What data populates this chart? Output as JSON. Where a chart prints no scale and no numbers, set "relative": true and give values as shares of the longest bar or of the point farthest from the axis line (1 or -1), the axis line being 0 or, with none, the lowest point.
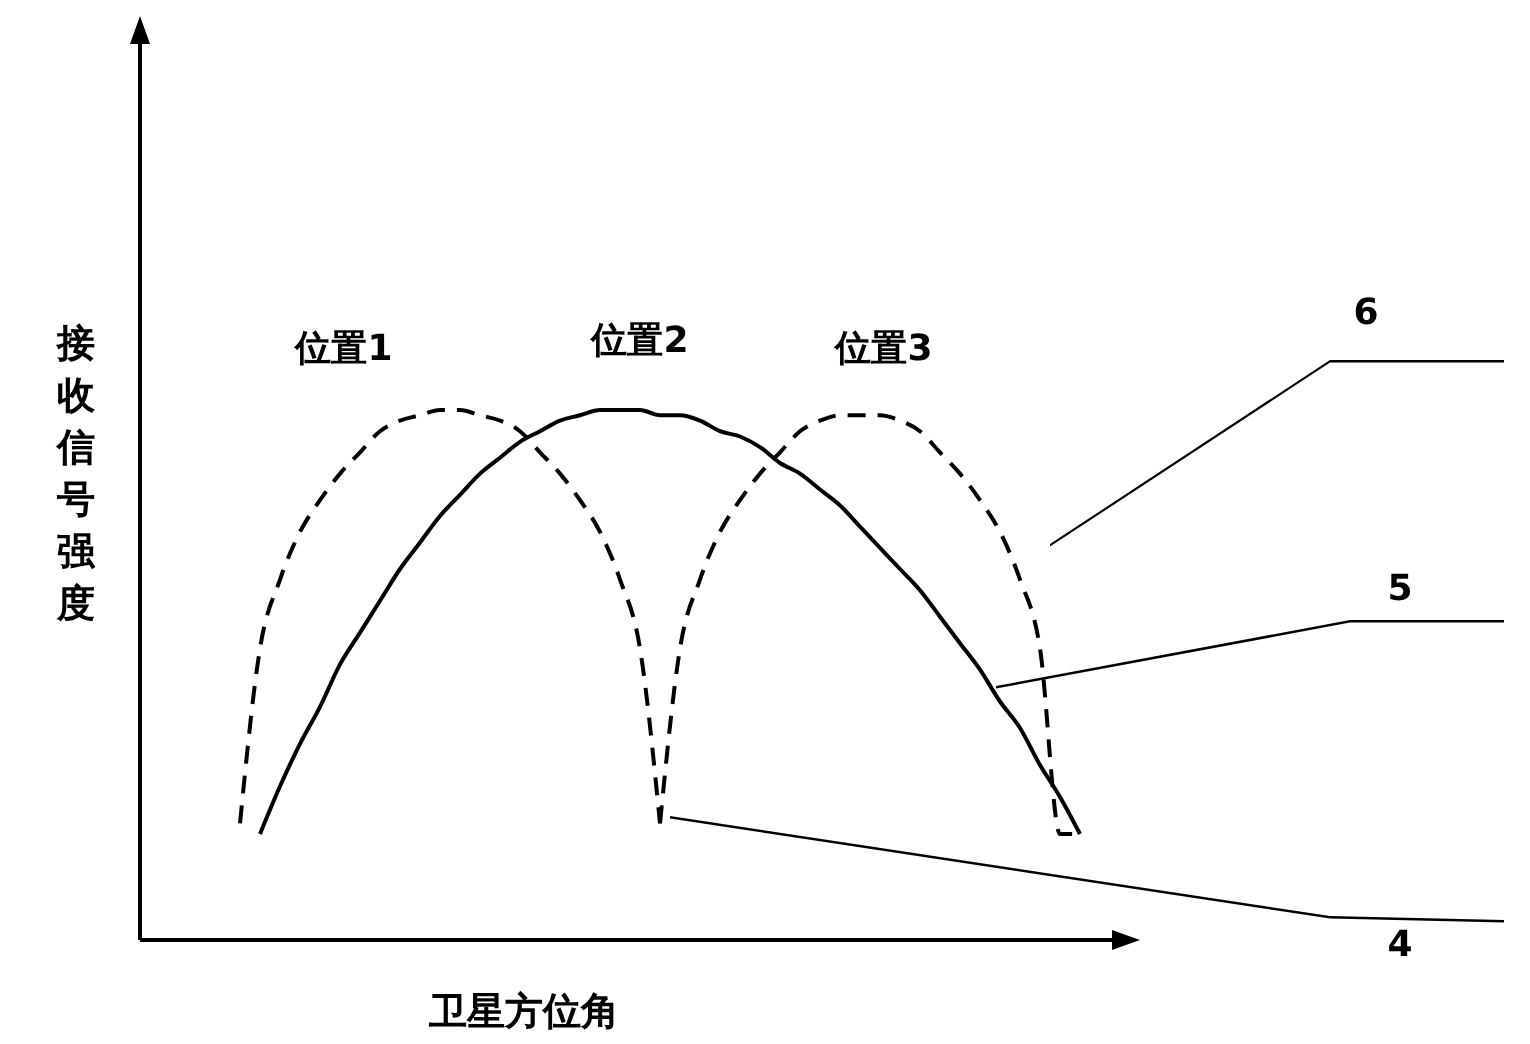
{
  "chart_data": {
    "type": "line",
    "relative": true,
    "xlabel": "卫星方位角",
    "ylabel": "接收信号强度",
    "categories": [
      null,
      null,
      null,
      null,
      null,
      null,
      null,
      null,
      null,
      null,
      null,
      null,
      null,
      null,
      null,
      null,
      null,
      null,
      null,
      null,
      null,
      null,
      null,
      null,
      null,
      null,
      null,
      null,
      null,
      null,
      null,
      null,
      null,
      null,
      null,
      null,
      null,
      null,
      null,
      null,
      null,
      null,
      null
    ],
    "series": [
      {
        "color": "#000000",
        "line_style": "dashed",
        "values": [
          0.22,
          0.55,
          0.68,
          0.77,
          0.83,
          0.88,
          0.92,
          0.96,
          0.98,
          0.99,
          1.0,
          1.0,
          0.99,
          0.98,
          0.96,
          0.92,
          0.88,
          0.83,
          0.77,
          0.68,
          0.55,
          0.22,
          null,
          null,
          null,
          null,
          null,
          null,
          null,
          null,
          null,
          null,
          null,
          null,
          null,
          null,
          null,
          null,
          null,
          null,
          null,
          null,
          null
        ]
      },
      {
        "color": "#000000",
        "line_style": "solid",
        "values": [
          null,
          0.2,
          0.29,
          0.37,
          0.44,
          0.52,
          0.58,
          0.64,
          0.7,
          0.75,
          0.8,
          0.84,
          0.88,
          0.91,
          0.94,
          0.96,
          0.98,
          0.99,
          1.0,
          1.0,
          1.0,
          0.99,
          0.99,
          0.98,
          0.96,
          0.95,
          0.93,
          0.9,
          0.88,
          0.85,
          0.82,
          0.78,
          0.74,
          0.7,
          0.66,
          0.61,
          0.56,
          0.51,
          0.45,
          0.4,
          0.33,
          0.27,
          0.2
        ]
      },
      {
        "color": "#000000",
        "line_style": "dashed",
        "values": [
          null,
          null,
          null,
          null,
          null,
          null,
          null,
          null,
          null,
          null,
          null,
          null,
          null,
          null,
          null,
          null,
          null,
          null,
          null,
          null,
          null,
          0.22,
          0.55,
          0.68,
          0.77,
          0.83,
          0.88,
          0.92,
          0.96,
          0.98,
          0.99,
          0.99,
          0.99,
          0.98,
          0.96,
          0.92,
          0.88,
          0.83,
          0.77,
          0.68,
          0.55,
          0.2,
          0.2
        ]
      }
    ],
    "annotations": [
      "位置1",
      "位置2",
      "位置3",
      "6",
      "5",
      "4"
    ]
  }
}
